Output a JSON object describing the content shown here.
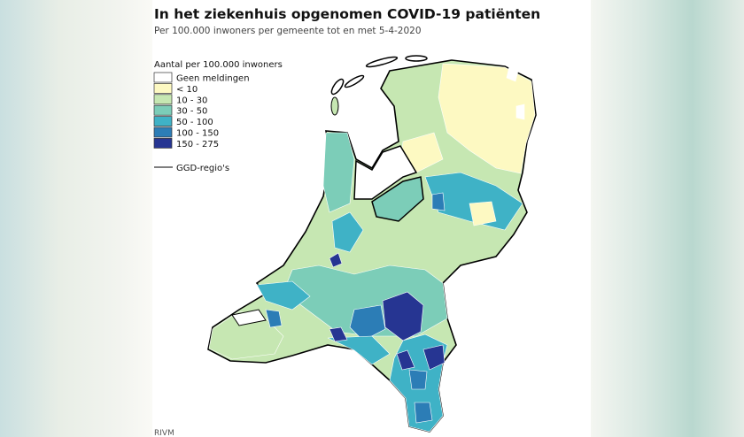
{
  "header": {
    "title": "In het ziekenhuis opgenomen COVID-19 patiënten",
    "subtitle": "Per 100.000 inwoners per gemeente tot en met 5-4-2020"
  },
  "legend": {
    "title": "Aantal per 100.000 inwoners",
    "items": [
      {
        "label": "Geen meldingen",
        "color": "#ffffff"
      },
      {
        "label": "< 10",
        "color": "#fdf9c2"
      },
      {
        "label": "10 - 30",
        "color": "#c6e7b2"
      },
      {
        "label": "30 - 50",
        "color": "#7ccdb8"
      },
      {
        "label": "50 - 100",
        "color": "#3fb2c6"
      },
      {
        "label": "100 - 150",
        "color": "#2c7db6"
      },
      {
        "label": "150 - 275",
        "color": "#263592"
      }
    ],
    "boundary": "GGD-regio's"
  },
  "source": "RIVM"
}
